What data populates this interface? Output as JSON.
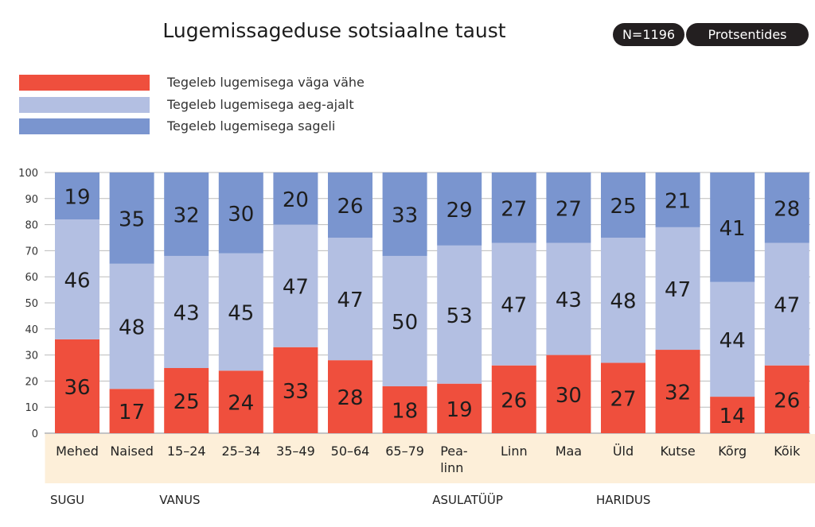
{
  "header": {
    "title": "Lugemissageduse sotsiaalne taust",
    "n_badge": "N=1196",
    "unit_badge": "Protsentides"
  },
  "colors": {
    "low": "#ef4f3d",
    "mid": "#b3bfe2",
    "high": "#7a95cf",
    "group_bg": "#fdefd9"
  },
  "chart_data": {
    "type": "bar",
    "stacked": true,
    "ylim": [
      0,
      100
    ],
    "grid": true,
    "legend": "top-left",
    "yticks": [
      0,
      10,
      20,
      30,
      40,
      50,
      60,
      70,
      80,
      90,
      100
    ],
    "categories": [
      "Mehed",
      "Naised",
      "15–24",
      "25–34",
      "35–49",
      "50–64",
      "65–79",
      "Pea-linn",
      "Linn",
      "Maa",
      "Üld",
      "Kutse",
      "Kõrg",
      "Kõik"
    ],
    "groups": [
      {
        "label": "SUGU",
        "count": 2
      },
      {
        "label": "VANUS",
        "count": 5
      },
      {
        "label": "ASULATÜÜP",
        "count": 3
      },
      {
        "label": "HARIDUS",
        "count": 3
      },
      {
        "label": "",
        "count": 1
      }
    ],
    "series": [
      {
        "name": "Tegeleb lugemisega väga vähe",
        "values": [
          36,
          17,
          25,
          24,
          33,
          28,
          18,
          19,
          26,
          30,
          27,
          32,
          14,
          26
        ]
      },
      {
        "name": "Tegeleb lugemisega aeg-ajalt",
        "values": [
          46,
          48,
          43,
          45,
          47,
          47,
          50,
          53,
          47,
          43,
          48,
          47,
          44,
          47
        ]
      },
      {
        "name": "Tegeleb lugemisega sageli",
        "values": [
          19,
          35,
          32,
          30,
          20,
          26,
          33,
          29,
          27,
          27,
          25,
          21,
          41,
          28
        ]
      }
    ]
  }
}
